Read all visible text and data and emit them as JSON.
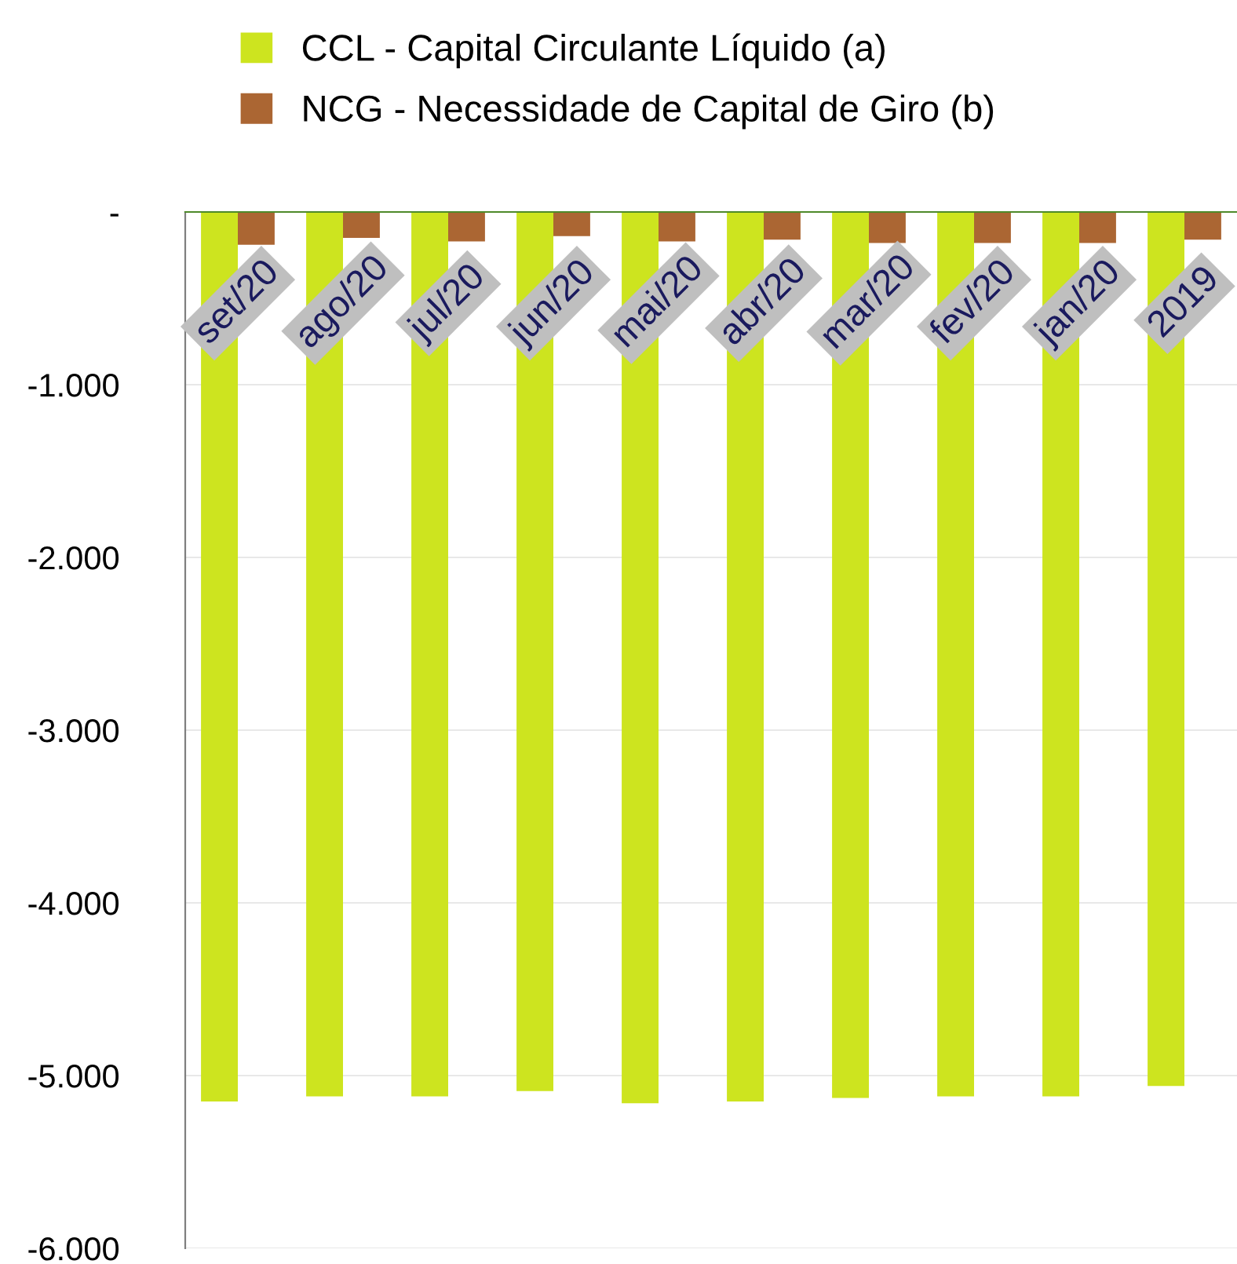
{
  "chart_data": {
    "type": "bar",
    "categories": [
      "set/20",
      "ago/20",
      "jul/20",
      "jun/20",
      "mai/20",
      "abr/20",
      "mar/20",
      "fev/20",
      "jan/20",
      "2019"
    ],
    "series": [
      {
        "name": "CCL - Capital Circulante Líquido (a)",
        "color": "#cde41f",
        "values": [
          -5150,
          -5120,
          -5120,
          -5090,
          -5160,
          -5150,
          -5130,
          -5120,
          -5120,
          -5060
        ]
      },
      {
        "name": "NCG - Necessidade de Capital de Giro (b)",
        "color": "#ab6633",
        "values": [
          -190,
          -150,
          -170,
          -140,
          -170,
          -160,
          -180,
          -180,
          -180,
          -160
        ]
      }
    ],
    "ylim": [
      -6000,
      0
    ],
    "yticks": [
      {
        "value": 0,
        "label": "-"
      },
      {
        "value": -1000,
        "label": "-1.000"
      },
      {
        "value": -2000,
        "label": "-2.000"
      },
      {
        "value": -3000,
        "label": "-3.000"
      },
      {
        "value": -4000,
        "label": "-4.000"
      },
      {
        "value": -5000,
        "label": "-5.000"
      },
      {
        "value": -6000,
        "label": "-6.000"
      }
    ],
    "grid": "y",
    "legend": "top"
  }
}
